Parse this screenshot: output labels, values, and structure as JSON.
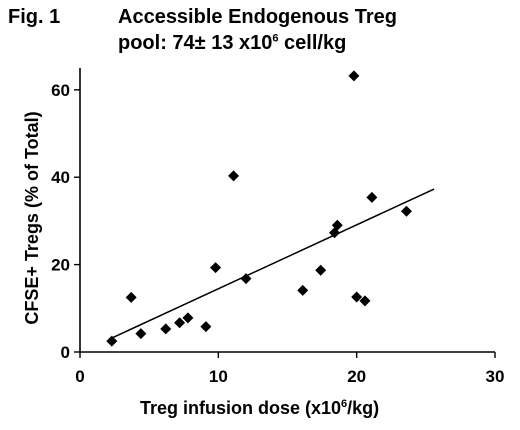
{
  "figure": {
    "label": "Fig. 1",
    "title_line1": "Accessible Endogenous Treg",
    "title_line2_prefix": "pool:  74± 13 x10",
    "title_line2_sup": "6",
    "title_line2_suffix": " cell/kg"
  },
  "chart_data": {
    "type": "scatter",
    "xlabel_prefix": "Treg infusion dose (x10",
    "xlabel_sup": "6",
    "xlabel_suffix": "/kg)",
    "ylabel": "CFSE+ Tregs (% of Total)",
    "xlim": [
      0,
      30
    ],
    "ylim": [
      0,
      65
    ],
    "xticks": [
      0,
      10,
      20,
      30
    ],
    "yticks": [
      0,
      20,
      40,
      60
    ],
    "grid": false,
    "legend": "none",
    "marker": "diamond",
    "points": [
      {
        "x": 2.3,
        "y": 2.5
      },
      {
        "x": 3.7,
        "y": 12.5
      },
      {
        "x": 4.4,
        "y": 4.2
      },
      {
        "x": 6.2,
        "y": 5.3
      },
      {
        "x": 7.2,
        "y": 6.7
      },
      {
        "x": 7.8,
        "y": 7.8
      },
      {
        "x": 9.1,
        "y": 5.8
      },
      {
        "x": 9.8,
        "y": 19.3
      },
      {
        "x": 11.1,
        "y": 40.3
      },
      {
        "x": 12.0,
        "y": 16.8
      },
      {
        "x": 16.1,
        "y": 14.1
      },
      {
        "x": 17.4,
        "y": 18.7
      },
      {
        "x": 18.4,
        "y": 27.3
      },
      {
        "x": 18.6,
        "y": 29.0
      },
      {
        "x": 19.8,
        "y": 63.2
      },
      {
        "x": 20.0,
        "y": 12.6
      },
      {
        "x": 20.6,
        "y": 11.7
      },
      {
        "x": 21.1,
        "y": 35.4
      },
      {
        "x": 23.6,
        "y": 32.2
      }
    ],
    "trendline": {
      "x": [
        2.3,
        25.6
      ],
      "y": [
        3.2,
        37.3
      ]
    }
  }
}
